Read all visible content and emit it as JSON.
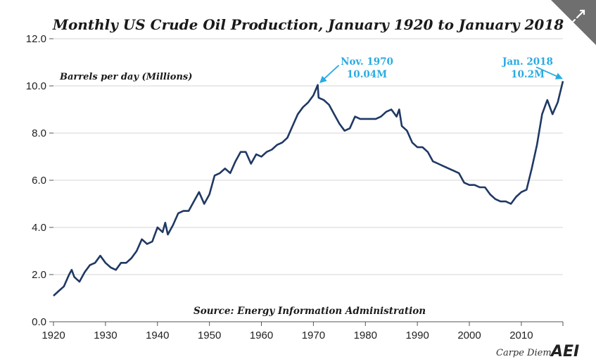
{
  "chart_data": {
    "type": "line",
    "title": "Monthly US Crude Oil Production, January 1920 to January 2018",
    "ylabel": "Barrels per day (Millions)",
    "source": "Source: Energy Information Administration",
    "xlim": [
      1920,
      2018
    ],
    "ylim": [
      0,
      12
    ],
    "x_ticks": [
      1920,
      1930,
      1940,
      1950,
      1960,
      1970,
      1980,
      1990,
      2000,
      2010
    ],
    "y_ticks": [
      "0.0",
      "2.0",
      "4.0",
      "6.0",
      "8.0",
      "10.0",
      "12.0"
    ],
    "grid": true,
    "series": [
      {
        "color": "#1f3864",
        "x": [
          1920,
          1921,
          1922,
          1923,
          1923.5,
          1924,
          1925,
          1926,
          1927,
          1928,
          1929,
          1930,
          1931,
          1932,
          1933,
          1934,
          1935,
          1936,
          1937,
          1938,
          1939,
          1940,
          1941,
          1941.5,
          1942,
          1943,
          1944,
          1945,
          1946,
          1947,
          1948,
          1949,
          1950,
          1951,
          1952,
          1953,
          1954,
          1955,
          1956,
          1957,
          1958,
          1959,
          1960,
          1961,
          1962,
          1963,
          1964,
          1965,
          1966,
          1967,
          1968,
          1969,
          1970,
          1970.83,
          1971,
          1972,
          1973,
          1974,
          1975,
          1976,
          1977,
          1978,
          1979,
          1980,
          1981,
          1982,
          1983,
          1984,
          1985,
          1986,
          1986.5,
          1987,
          1988,
          1989,
          1990,
          1991,
          1992,
          1993,
          1994,
          1995,
          1996,
          1997,
          1998,
          1999,
          2000,
          2001,
          2002,
          2003,
          2004,
          2005,
          2006,
          2007,
          2008,
          2009,
          2010,
          2011,
          2012,
          2013,
          2014,
          2015,
          2016,
          2017,
          2018
        ],
        "y": [
          1.1,
          1.3,
          1.5,
          2.0,
          2.2,
          1.9,
          1.7,
          2.1,
          2.4,
          2.5,
          2.8,
          2.5,
          2.3,
          2.2,
          2.5,
          2.5,
          2.7,
          3.0,
          3.5,
          3.3,
          3.4,
          4.0,
          3.8,
          4.2,
          3.7,
          4.1,
          4.6,
          4.7,
          4.7,
          5.1,
          5.5,
          5.0,
          5.4,
          6.2,
          6.3,
          6.5,
          6.3,
          6.8,
          7.2,
          7.2,
          6.7,
          7.1,
          7.0,
          7.2,
          7.3,
          7.5,
          7.6,
          7.8,
          8.3,
          8.8,
          9.1,
          9.3,
          9.6,
          10.04,
          9.5,
          9.4,
          9.2,
          8.8,
          8.4,
          8.1,
          8.2,
          8.7,
          8.6,
          8.6,
          8.6,
          8.6,
          8.7,
          8.9,
          9.0,
          8.7,
          9.0,
          8.3,
          8.1,
          7.6,
          7.4,
          7.4,
          7.2,
          6.8,
          6.7,
          6.6,
          6.5,
          6.4,
          6.3,
          5.9,
          5.8,
          5.8,
          5.7,
          5.7,
          5.4,
          5.2,
          5.1,
          5.1,
          5.0,
          5.3,
          5.5,
          5.6,
          6.5,
          7.5,
          8.8,
          9.4,
          8.8,
          9.3,
          10.2
        ]
      }
    ],
    "annotations": [
      {
        "x": 1970.83,
        "y": 10.04,
        "label_line1": "Nov. 1970",
        "label_line2": "10.04M"
      },
      {
        "x": 2018,
        "y": 10.2,
        "label_line1": "Jan. 2018",
        "label_line2": "10.2M"
      }
    ]
  },
  "branding": {
    "blog_name": "Carpe Diem",
    "logo_text": "AEI"
  },
  "controls": {
    "expand_icon": "expand-arrows-icon"
  }
}
